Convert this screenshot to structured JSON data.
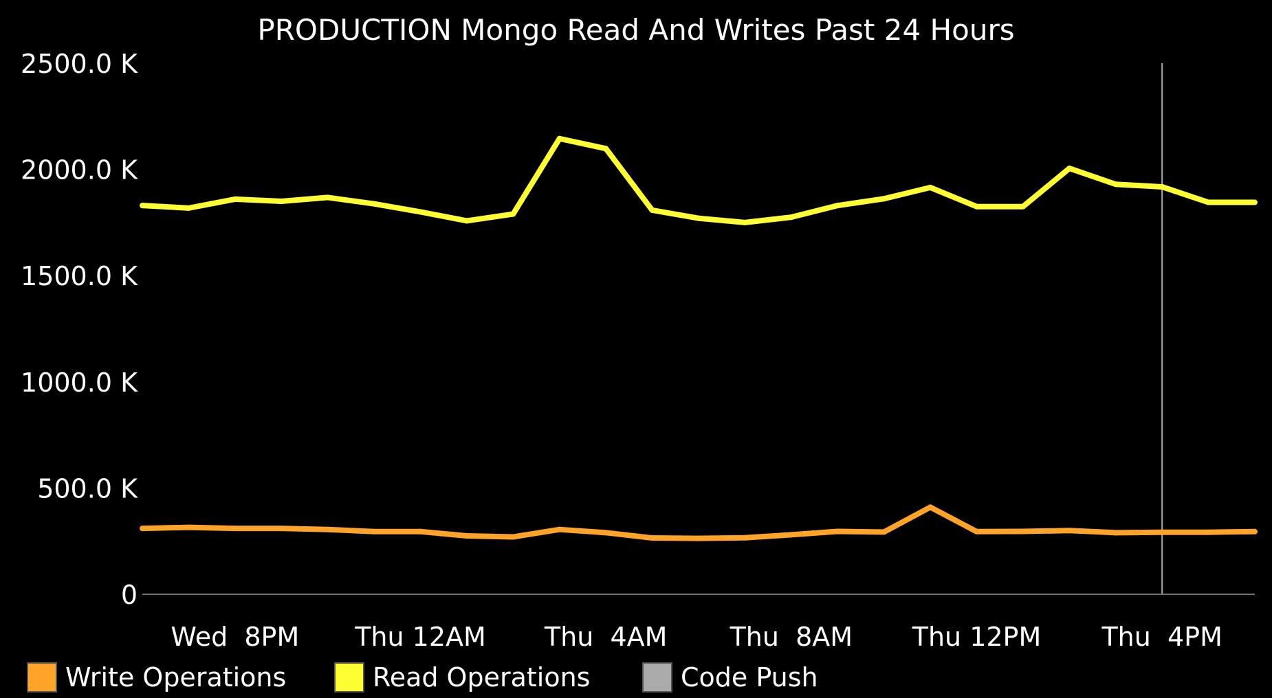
{
  "chart_data": {
    "type": "line",
    "title": "PRODUCTION Mongo Read And Writes Past 24 Hours",
    "xlabel": "",
    "ylabel": "",
    "ylim": [
      0,
      2500
    ],
    "y_ticks": [
      {
        "value": 0,
        "label": "0"
      },
      {
        "value": 500,
        "label": "500.0 K"
      },
      {
        "value": 1000,
        "label": "1000.0 K"
      },
      {
        "value": 1500,
        "label": "1500.0 K"
      },
      {
        "value": 2000,
        "label": "2000.0 K"
      },
      {
        "value": 2500,
        "label": "2500.0 K"
      }
    ],
    "x_ticks": [
      {
        "value": "Wed 8PM",
        "label": "Wed  8PM"
      },
      {
        "value": "Thu 12AM",
        "label": "Thu 12AM"
      },
      {
        "value": "Thu 4AM",
        "label": "Thu  4AM"
      },
      {
        "value": "Thu 8AM",
        "label": "Thu  8AM"
      },
      {
        "value": "Thu 12PM",
        "label": "Thu 12PM"
      },
      {
        "value": "Thu 4PM",
        "label": "Thu  4PM"
      }
    ],
    "x": [
      "Wed 6PM",
      "Wed 7PM",
      "Wed 8PM",
      "Wed 9PM",
      "Wed 10PM",
      "Wed 11PM",
      "Thu 12AM",
      "Thu 1AM",
      "Thu 2AM",
      "Thu 3AM",
      "Thu 4AM",
      "Thu 5AM",
      "Thu 6AM",
      "Thu 7AM",
      "Thu 8AM",
      "Thu 9AM",
      "Thu 10AM",
      "Thu 11AM",
      "Thu 12PM",
      "Thu 1PM",
      "Thu 2PM",
      "Thu 3PM",
      "Thu 4PM",
      "Thu 5PM",
      "Thu 6PM"
    ],
    "series": [
      {
        "name": "Write Operations",
        "color": "#ffa329",
        "values": [
          310,
          315,
          310,
          310,
          305,
          295,
          295,
          275,
          270,
          305,
          290,
          265,
          263,
          266,
          280,
          296,
          293,
          410,
          295,
          296,
          300,
          290,
          292,
          292,
          295
        ]
      },
      {
        "name": "Read Operations",
        "color": "#ffff33",
        "values": [
          1830,
          1818,
          1860,
          1850,
          1868,
          1838,
          1800,
          1758,
          1790,
          2145,
          2098,
          1808,
          1770,
          1750,
          1775,
          1830,
          1862,
          1915,
          1825,
          1825,
          2005,
          1930,
          1918,
          1845,
          1845
        ]
      }
    ],
    "markers": [
      {
        "name": "Code Push",
        "color": "#aaaaaa",
        "x": "Thu 4PM"
      }
    ],
    "legend": {
      "position": "bottom-left",
      "items": [
        {
          "label": "Write Operations",
          "color": "#ffa329"
        },
        {
          "label": "Read Operations",
          "color": "#ffff33"
        },
        {
          "label": "Code Push",
          "color": "#aaaaaa"
        }
      ]
    },
    "grid": false,
    "background": "#000000",
    "text_color": "#ffffff",
    "axis_color": "#777777"
  }
}
